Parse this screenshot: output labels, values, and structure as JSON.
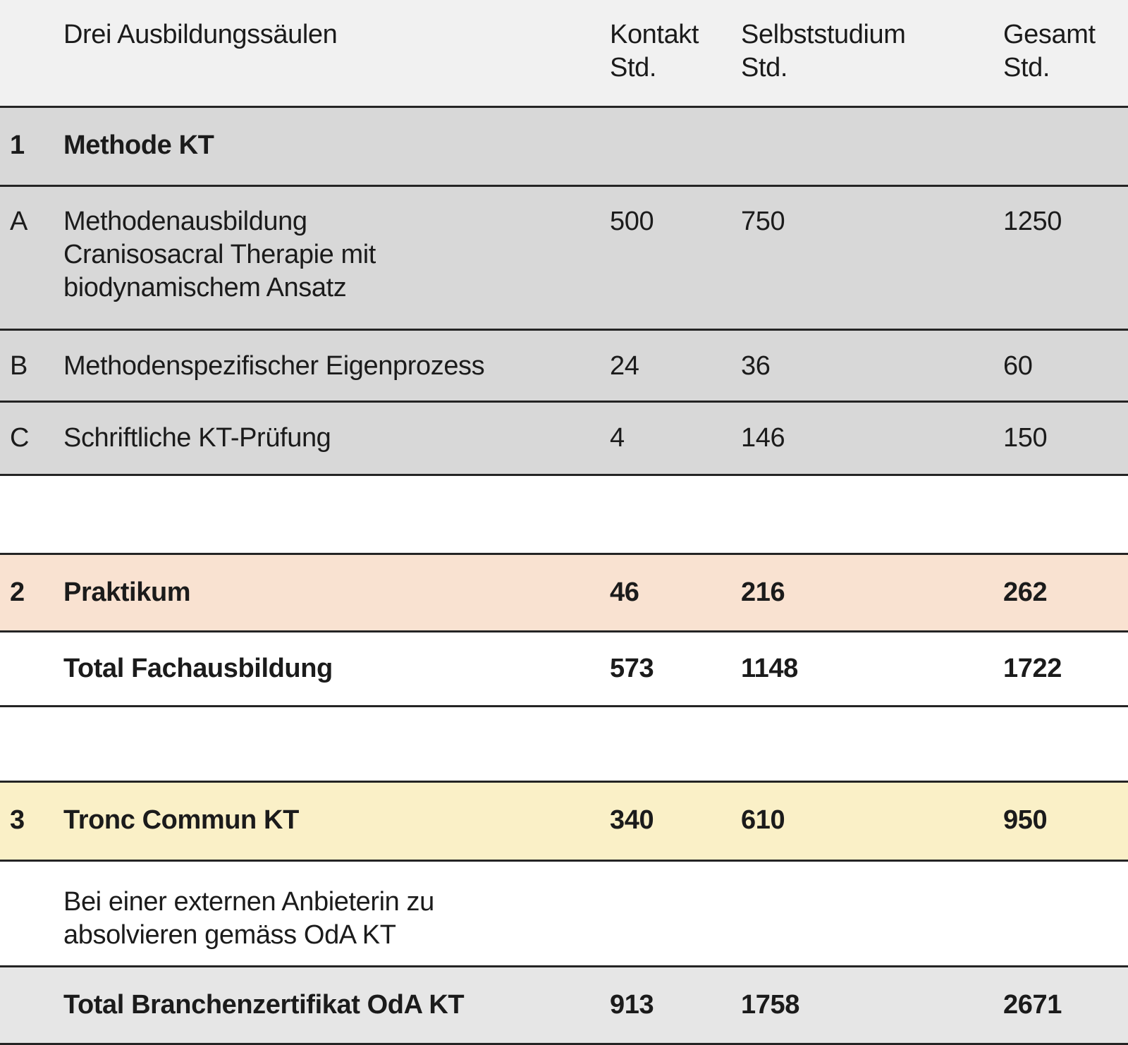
{
  "header": {
    "col_label": "Drei Ausbildungssäulen",
    "col_kontakt": "Kontakt\nStd.",
    "col_selbststudium": "Selbststudium\nStd.",
    "col_gesamt": "Gesamt\nStd."
  },
  "sections": {
    "methode": {
      "num": "1",
      "title": "Methode KT",
      "items": [
        {
          "id": "A",
          "label": "Methodenausbildung\nCranisosacral Therapie mit\nbiodynamischem Ansatz",
          "kontakt": "500",
          "selbststudium": "750",
          "gesamt": "1250"
        },
        {
          "id": "B",
          "label": "Methodenspezifischer Eigenprozess",
          "kontakt": "24",
          "selbststudium": "36",
          "gesamt": "60"
        },
        {
          "id": "C",
          "label": "Schriftliche KT-Prüfung",
          "kontakt": "4",
          "selbststudium": "146",
          "gesamt": "150"
        }
      ]
    },
    "praktikum": {
      "num": "2",
      "title": "Praktikum",
      "kontakt": "46",
      "selbststudium": "216",
      "gesamt": "262"
    },
    "total_fachausbildung": {
      "title": "Total Fachausbildung",
      "kontakt": "573",
      "selbststudium": "1148",
      "gesamt": "1722"
    },
    "tronc_commun": {
      "num": "3",
      "title": "Tronc Commun KT",
      "kontakt": "340",
      "selbststudium": "610",
      "gesamt": "950",
      "note": "Bei einer externen Anbieterin zu\nabsolvieren gemäss OdA KT"
    },
    "total_branchenzertifikat": {
      "title": "Total Branchenzertifikat OdA KT",
      "kontakt": "913",
      "selbststudium": "1758",
      "gesamt": "2671"
    }
  },
  "colors": {
    "header_bg": "#f1f1f1",
    "section_gray": "#d8d8d8",
    "praktikum_peach": "#f9e2d1",
    "tronc_yellow": "#faf0c7",
    "total_gray": "#e6e6e6",
    "rule": "#242424"
  }
}
